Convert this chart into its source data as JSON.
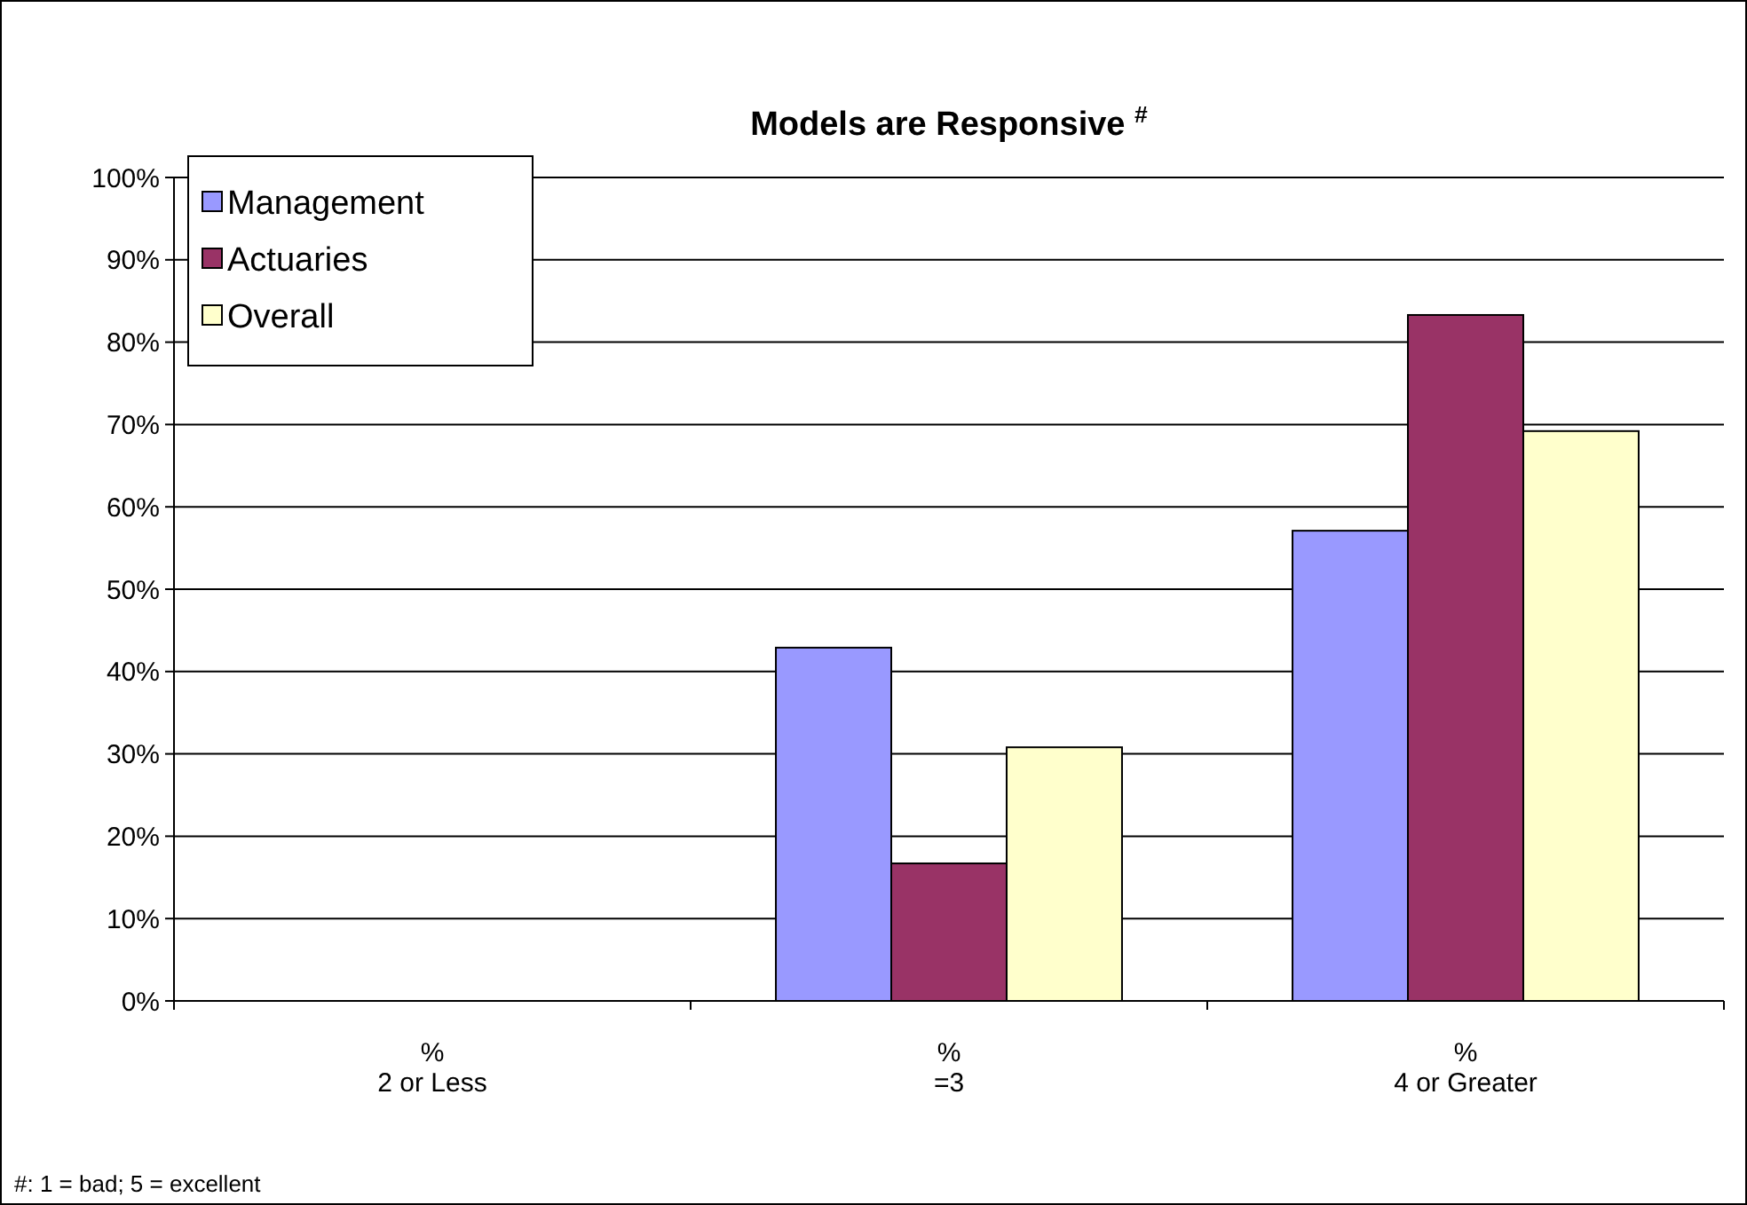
{
  "chart_data": {
    "type": "bar",
    "title": "Models are Responsive $^{#}$",
    "categories": [
      "%\n2 or Less",
      "%\n=3",
      "%\n4 or Greater"
    ],
    "series": [
      {
        "name": "Management",
        "color": "#9999ff",
        "values": [
          0,
          42.9,
          57.1
        ]
      },
      {
        "name": "Actuaries",
        "color": "#993366",
        "values": [
          0,
          16.7,
          83.3
        ]
      },
      {
        "name": "Overall",
        "color": "#ffffcc",
        "values": [
          0,
          30.8,
          69.2
        ]
      }
    ],
    "ylim": [
      0,
      100
    ],
    "yticks": [
      {
        "value": 0,
        "label": "0%"
      },
      {
        "value": 10,
        "label": "10%"
      },
      {
        "value": 20,
        "label": "20%"
      },
      {
        "value": 30,
        "label": "30%"
      },
      {
        "value": 40,
        "label": "40%"
      },
      {
        "value": 50,
        "label": "50%"
      },
      {
        "value": 60,
        "label": "60%"
      },
      {
        "value": 70,
        "label": "70%"
      },
      {
        "value": 80,
        "label": "80%"
      },
      {
        "value": 90,
        "label": "90%"
      },
      {
        "value": 100,
        "label": "100%"
      }
    ],
    "grid": "y",
    "legend": "top left",
    "annotations": [
      "#: 1 = bad; 5 = excellent"
    ]
  }
}
